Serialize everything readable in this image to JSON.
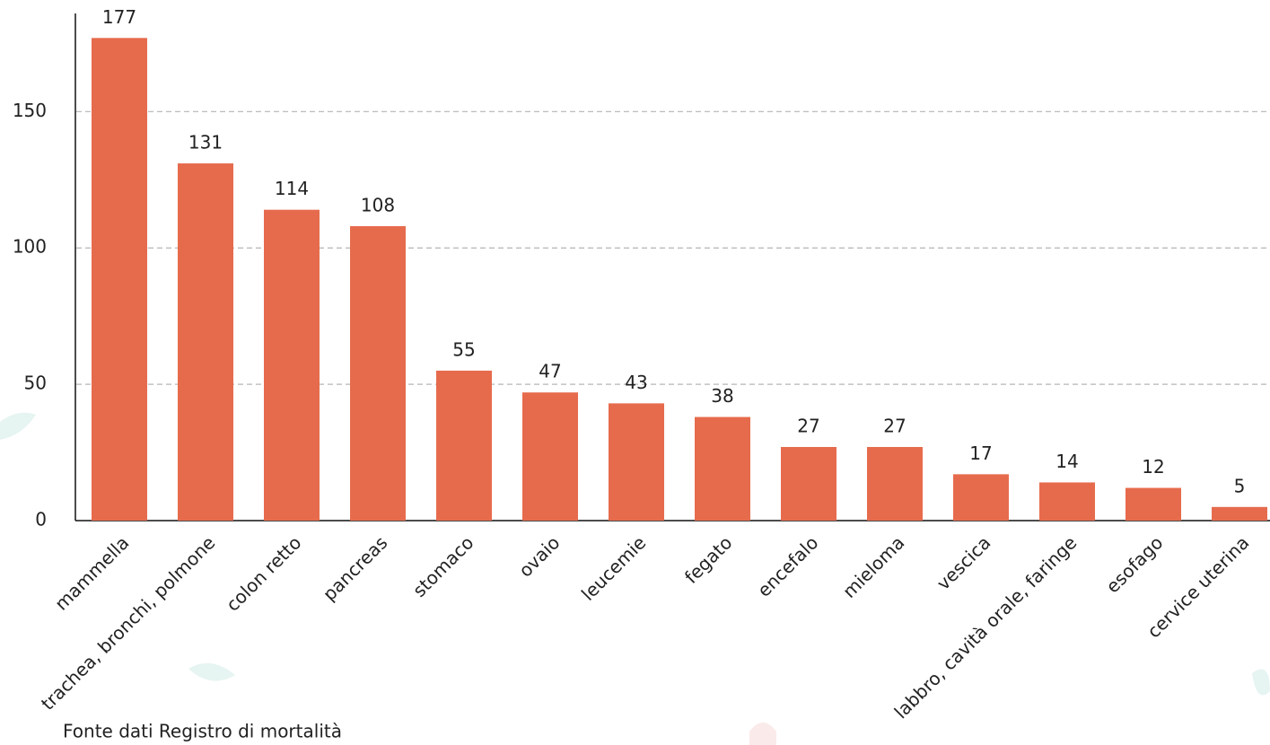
{
  "chart_data": {
    "type": "bar",
    "categories": [
      "mammella",
      "trachea, bronchi, polmone",
      "colon retto",
      "pancreas",
      "stomaco",
      "ovaio",
      "leucemie",
      "fegato",
      "encefalo",
      "mieloma",
      "vescica",
      "labbro, cavità orale, faringe",
      "esofago",
      "cervice uterina"
    ],
    "values": [
      177,
      131,
      114,
      108,
      55,
      47,
      43,
      38,
      27,
      27,
      17,
      14,
      12,
      5
    ],
    "color": "#e66b4d",
    "ylim": [
      0,
      185
    ],
    "yticks": [
      0,
      50,
      100,
      150
    ],
    "grid": true,
    "source": "Fonte dati Registro di mortalità"
  }
}
